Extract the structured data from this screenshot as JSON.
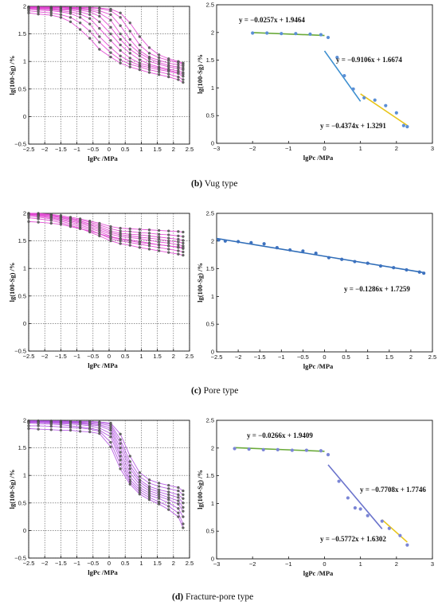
{
  "captions": [
    {
      "letter": "(b)",
      "text": " Vug type"
    },
    {
      "letter": "(c)",
      "text": " Pore type"
    },
    {
      "letter": "(d)",
      "text": " Fracture-pore type"
    }
  ],
  "chart_data": [
    {
      "id": "b-left",
      "type": "line",
      "xlabel": "lgPc /MPa",
      "ylabel": "lg(100-Sg) /%",
      "xlim": [
        -2.5,
        2.5
      ],
      "ylim": [
        -0.5,
        2
      ],
      "xticks": [
        -2.5,
        -2,
        -1.5,
        -1,
        -0.5,
        0,
        0.5,
        1,
        1.5,
        2,
        2.5
      ],
      "yticks": [
        -0.5,
        0,
        0.5,
        1,
        1.5,
        2
      ],
      "grid": true,
      "line_color": "#e040d0",
      "marker_color": "#666666",
      "x": [
        -2.5,
        -2.2,
        -1.8,
        -1.5,
        -1.2,
        -0.9,
        -0.6,
        -0.3,
        0.05,
        0.35,
        0.65,
        0.95,
        1.25,
        1.55,
        1.85,
        2.15,
        2.3
      ],
      "series": [
        {
          "values": [
            1.99,
            1.99,
            1.99,
            1.99,
            1.98,
            1.98,
            1.98,
            1.97,
            1.95,
            1.88,
            1.7,
            1.45,
            1.25,
            1.12,
            1.05,
            1.0,
            0.97
          ]
        },
        {
          "values": [
            1.99,
            1.99,
            1.98,
            1.98,
            1.98,
            1.97,
            1.97,
            1.96,
            1.92,
            1.8,
            1.55,
            1.3,
            1.15,
            1.07,
            1.02,
            0.98,
            0.95
          ]
        },
        {
          "values": [
            1.99,
            1.98,
            1.98,
            1.97,
            1.97,
            1.96,
            1.95,
            1.92,
            1.85,
            1.65,
            1.4,
            1.2,
            1.08,
            1.02,
            0.97,
            0.94,
            0.92
          ]
        },
        {
          "values": [
            1.98,
            1.98,
            1.97,
            1.97,
            1.96,
            1.95,
            1.93,
            1.88,
            1.75,
            1.5,
            1.3,
            1.15,
            1.05,
            0.98,
            0.93,
            0.9,
            0.88
          ]
        },
        {
          "values": [
            1.98,
            1.97,
            1.96,
            1.95,
            1.95,
            1.93,
            1.9,
            1.82,
            1.62,
            1.4,
            1.22,
            1.1,
            1.0,
            0.95,
            0.9,
            0.87,
            0.85
          ]
        },
        {
          "values": [
            1.97,
            1.96,
            1.95,
            1.94,
            1.93,
            1.9,
            1.85,
            1.72,
            1.5,
            1.3,
            1.15,
            1.03,
            0.95,
            0.9,
            0.86,
            0.83,
            0.8
          ]
        },
        {
          "values": [
            1.96,
            1.95,
            1.94,
            1.92,
            1.9,
            1.86,
            1.78,
            1.6,
            1.38,
            1.2,
            1.06,
            0.97,
            0.92,
            0.88,
            0.84,
            0.8,
            0.77
          ]
        },
        {
          "values": [
            1.95,
            1.93,
            1.92,
            1.9,
            1.87,
            1.8,
            1.68,
            1.45,
            1.25,
            1.1,
            1.0,
            0.93,
            0.89,
            0.85,
            0.82,
            0.78,
            0.73
          ]
        },
        {
          "values": [
            1.92,
            1.9,
            1.88,
            1.85,
            1.8,
            1.7,
            1.55,
            1.35,
            1.16,
            1.03,
            0.95,
            0.9,
            0.85,
            0.81,
            0.77,
            0.72,
            0.67
          ]
        },
        {
          "values": [
            1.88,
            1.86,
            1.84,
            1.8,
            1.72,
            1.58,
            1.42,
            1.22,
            1.08,
            0.97,
            0.9,
            0.85,
            0.8,
            0.76,
            0.72,
            0.67,
            0.62
          ]
        }
      ]
    },
    {
      "id": "b-right",
      "type": "scatter",
      "xlabel": "lgPc /MPa",
      "ylabel": "lg(100-Sg) /%",
      "xlim": [
        -3,
        3
      ],
      "ylim": [
        0,
        2.5
      ],
      "xticks": [
        -3,
        -2,
        -1,
        0,
        1,
        2,
        3
      ],
      "yticks": [
        0,
        0.5,
        1,
        1.5,
        2,
        2.5
      ],
      "grid": false,
      "points": {
        "color": "#5b8fd6",
        "x": [
          -2.0,
          -1.6,
          -1.2,
          -0.8,
          -0.4,
          -0.1,
          0.1,
          0.35,
          0.55,
          0.8,
          1.1,
          1.4,
          1.7,
          2.0,
          2.2,
          2.3
        ],
        "y": [
          1.99,
          1.99,
          1.98,
          1.98,
          1.97,
          1.96,
          1.91,
          1.55,
          1.22,
          0.98,
          0.82,
          0.78,
          0.68,
          0.55,
          0.32,
          0.3
        ]
      },
      "fits": [
        {
          "equation": "y = −0.0257x + 1.9464",
          "slope": -0.0257,
          "intercept": 1.9464,
          "x_range": [
            -2.0,
            0.0
          ],
          "color": "#6aaa3a"
        },
        {
          "equation": "y = −0.9106x + 1.6674",
          "slope": -0.9106,
          "intercept": 1.6674,
          "x_range": [
            0.0,
            1.0
          ],
          "color": "#3d8fd0"
        },
        {
          "equation": "y = −0.4374x + 1.3291",
          "slope": -0.4374,
          "intercept": 1.3291,
          "x_range": [
            1.0,
            2.3
          ],
          "color": "#e8c51a"
        }
      ]
    },
    {
      "id": "c-left",
      "type": "line",
      "xlabel": "lgPc /MPa",
      "ylabel": "lg(100-Sg) /%",
      "xlim": [
        -2.5,
        2.5
      ],
      "ylim": [
        -0.5,
        2
      ],
      "xticks": [
        -2.5,
        -2,
        -1.5,
        -1,
        -0.5,
        0,
        0.5,
        1,
        1.5,
        2,
        2.5
      ],
      "yticks": [
        -0.5,
        0,
        0.5,
        1,
        1.5,
        2
      ],
      "grid": true,
      "line_color": "#e040d0",
      "marker_color": "#666666",
      "x": [
        -2.5,
        -2.2,
        -1.8,
        -1.5,
        -1.2,
        -0.9,
        -0.6,
        -0.3,
        0.05,
        0.35,
        0.65,
        0.95,
        1.25,
        1.55,
        1.85,
        2.15,
        2.3
      ],
      "series": [
        {
          "values": [
            2.0,
            2.0,
            1.98,
            1.96,
            1.93,
            1.9,
            1.86,
            1.82,
            1.76,
            1.73,
            1.72,
            1.71,
            1.7,
            1.69,
            1.68,
            1.67,
            1.66
          ]
        },
        {
          "values": [
            2.0,
            1.99,
            1.97,
            1.94,
            1.91,
            1.88,
            1.84,
            1.79,
            1.72,
            1.68,
            1.67,
            1.65,
            1.64,
            1.62,
            1.61,
            1.59,
            1.58
          ]
        },
        {
          "values": [
            1.99,
            1.98,
            1.96,
            1.93,
            1.9,
            1.86,
            1.81,
            1.76,
            1.68,
            1.64,
            1.62,
            1.61,
            1.59,
            1.57,
            1.55,
            1.53,
            1.51
          ]
        },
        {
          "values": [
            1.99,
            1.97,
            1.95,
            1.92,
            1.88,
            1.84,
            1.79,
            1.73,
            1.65,
            1.61,
            1.59,
            1.57,
            1.55,
            1.53,
            1.5,
            1.48,
            1.46
          ]
        },
        {
          "values": [
            1.98,
            1.96,
            1.93,
            1.9,
            1.86,
            1.82,
            1.76,
            1.7,
            1.62,
            1.58,
            1.56,
            1.54,
            1.51,
            1.48,
            1.46,
            1.43,
            1.41
          ]
        },
        {
          "values": [
            1.97,
            1.95,
            1.92,
            1.88,
            1.84,
            1.79,
            1.73,
            1.67,
            1.58,
            1.54,
            1.52,
            1.49,
            1.46,
            1.43,
            1.41,
            1.38,
            1.36
          ]
        },
        {
          "values": [
            1.95,
            1.93,
            1.9,
            1.86,
            1.81,
            1.76,
            1.7,
            1.63,
            1.54,
            1.5,
            1.47,
            1.44,
            1.41,
            1.38,
            1.35,
            1.32,
            1.3
          ]
        },
        {
          "values": [
            1.92,
            1.9,
            1.87,
            1.83,
            1.78,
            1.73,
            1.66,
            1.59,
            1.5,
            1.45,
            1.42,
            1.38,
            1.35,
            1.32,
            1.29,
            1.26,
            1.24
          ]
        },
        {
          "values": [
            1.85,
            1.84,
            1.82,
            1.8,
            1.76,
            1.72,
            1.68,
            1.63,
            1.57,
            1.53,
            1.5,
            1.47,
            1.45,
            1.43,
            1.41,
            1.39,
            1.38
          ]
        }
      ]
    },
    {
      "id": "c-right",
      "type": "scatter",
      "xlabel": "lgPc /MPa",
      "ylabel": "lg(100-Sg) /%",
      "xlim": [
        -2.5,
        2.5
      ],
      "ylim": [
        0,
        2.5
      ],
      "xticks": [
        -2.5,
        -2,
        -1.5,
        -1,
        -0.5,
        0,
        0.5,
        1,
        1.5,
        2,
        2.5
      ],
      "yticks": [
        0,
        0.5,
        1,
        1.5,
        2,
        2.5
      ],
      "grid": false,
      "points": {
        "color": "#3d72bf",
        "x": [
          -2.45,
          -2.3,
          -2.0,
          -1.7,
          -1.4,
          -1.1,
          -0.8,
          -0.5,
          -0.2,
          0.1,
          0.4,
          0.7,
          1.0,
          1.3,
          1.6,
          1.9,
          2.2,
          2.3
        ],
        "y": [
          2.02,
          2.0,
          1.99,
          1.97,
          1.95,
          1.88,
          1.84,
          1.82,
          1.78,
          1.7,
          1.67,
          1.63,
          1.6,
          1.55,
          1.52,
          1.48,
          1.44,
          1.42
        ]
      },
      "fits": [
        {
          "equation": "y = −0.1286x + 1.7259",
          "slope": -0.1286,
          "intercept": 1.7259,
          "x_range": [
            -2.5,
            2.3
          ],
          "color": "#2f6db8"
        }
      ]
    },
    {
      "id": "d-left",
      "type": "line",
      "xlabel": "lgPc /MPa",
      "ylabel": "lg(100-Sg) /%",
      "xlim": [
        -2.5,
        2.5
      ],
      "ylim": [
        -0.5,
        2
      ],
      "xticks": [
        -2.5,
        -2,
        -1.5,
        -1,
        -0.5,
        0,
        0.5,
        1,
        1.5,
        2,
        2.5
      ],
      "yticks": [
        -0.5,
        0,
        0.5,
        1,
        1.5,
        2
      ],
      "grid": true,
      "line_color": "#b050e0",
      "marker_color": "#666666",
      "x": [
        -2.5,
        -2.2,
        -1.8,
        -1.5,
        -1.2,
        -0.9,
        -0.6,
        -0.3,
        0.05,
        0.35,
        0.65,
        0.95,
        1.25,
        1.55,
        1.85,
        2.15,
        2.3
      ],
      "series": [
        {
          "values": [
            1.99,
            1.99,
            1.99,
            1.99,
            1.98,
            1.98,
            1.98,
            1.97,
            1.95,
            1.75,
            1.35,
            1.05,
            0.92,
            0.86,
            0.82,
            0.78,
            0.72
          ]
        },
        {
          "values": [
            1.99,
            1.99,
            1.98,
            1.98,
            1.98,
            1.97,
            1.97,
            1.96,
            1.93,
            1.65,
            1.25,
            0.98,
            0.86,
            0.8,
            0.76,
            0.72,
            0.65
          ]
        },
        {
          "values": [
            1.98,
            1.98,
            1.98,
            1.97,
            1.97,
            1.96,
            1.95,
            1.94,
            1.9,
            1.58,
            1.18,
            0.92,
            0.8,
            0.74,
            0.7,
            0.65,
            0.58
          ]
        },
        {
          "values": [
            1.98,
            1.97,
            1.97,
            1.96,
            1.96,
            1.95,
            1.94,
            1.92,
            1.86,
            1.5,
            1.12,
            0.88,
            0.76,
            0.7,
            0.65,
            0.6,
            0.5
          ]
        },
        {
          "values": [
            1.97,
            1.97,
            1.96,
            1.95,
            1.95,
            1.94,
            1.92,
            1.9,
            1.82,
            1.42,
            1.05,
            0.83,
            0.72,
            0.66,
            0.6,
            0.54,
            0.42
          ]
        },
        {
          "values": [
            1.96,
            1.96,
            1.95,
            1.94,
            1.93,
            1.92,
            1.9,
            1.86,
            1.76,
            1.35,
            0.98,
            0.78,
            0.68,
            0.62,
            0.56,
            0.48,
            0.35
          ]
        },
        {
          "values": [
            1.95,
            1.94,
            1.93,
            1.92,
            1.9,
            1.88,
            1.86,
            1.82,
            1.7,
            1.28,
            0.92,
            0.74,
            0.64,
            0.58,
            0.5,
            0.4,
            0.25
          ]
        },
        {
          "values": [
            1.9,
            1.9,
            1.89,
            1.88,
            1.87,
            1.86,
            1.84,
            1.8,
            1.6,
            1.2,
            0.88,
            0.7,
            0.6,
            0.52,
            0.44,
            0.32,
            0.12
          ]
        },
        {
          "values": [
            1.85,
            1.84,
            1.83,
            1.82,
            1.82,
            1.8,
            1.79,
            1.76,
            1.52,
            1.12,
            0.84,
            0.66,
            0.56,
            0.48,
            0.38,
            0.25,
            0.05
          ]
        }
      ]
    },
    {
      "id": "d-right",
      "type": "scatter",
      "xlabel": "lgPc /MPa",
      "ylabel": "lg(100-Sg) /%",
      "xlim": [
        -3,
        3
      ],
      "ylim": [
        0,
        2.5
      ],
      "xticks": [
        -3,
        -2,
        -1,
        0,
        1,
        2,
        3
      ],
      "yticks": [
        0,
        0.5,
        1,
        1.5,
        2,
        2.5
      ],
      "grid": false,
      "points": {
        "color": "#7b86d6",
        "x": [
          -2.5,
          -2.1,
          -1.7,
          -1.3,
          -0.9,
          -0.5,
          -0.1,
          0.1,
          0.4,
          0.65,
          0.85,
          1.0,
          1.2,
          1.6,
          1.8,
          2.1,
          2.3
        ],
        "y": [
          1.99,
          1.98,
          1.97,
          1.97,
          1.96,
          1.96,
          1.95,
          1.88,
          1.4,
          1.1,
          0.92,
          0.9,
          0.78,
          0.68,
          0.55,
          0.42,
          0.25
        ]
      },
      "fits": [
        {
          "equation": "y = −0.0266x + 1.9409",
          "slope": -0.0266,
          "intercept": 1.9409,
          "x_range": [
            -2.5,
            0.0
          ],
          "color": "#6aaa3a"
        },
        {
          "equation": "y = −0.7708x + 1.7746",
          "slope": -0.7708,
          "intercept": 1.7746,
          "x_range": [
            0.1,
            1.6
          ],
          "color": "#6b74cc"
        },
        {
          "equation": "y = −0.5772x + 1.6302",
          "slope": -0.5772,
          "intercept": 1.6302,
          "x_range": [
            1.6,
            2.3
          ],
          "color": "#e8c51a"
        }
      ]
    }
  ]
}
